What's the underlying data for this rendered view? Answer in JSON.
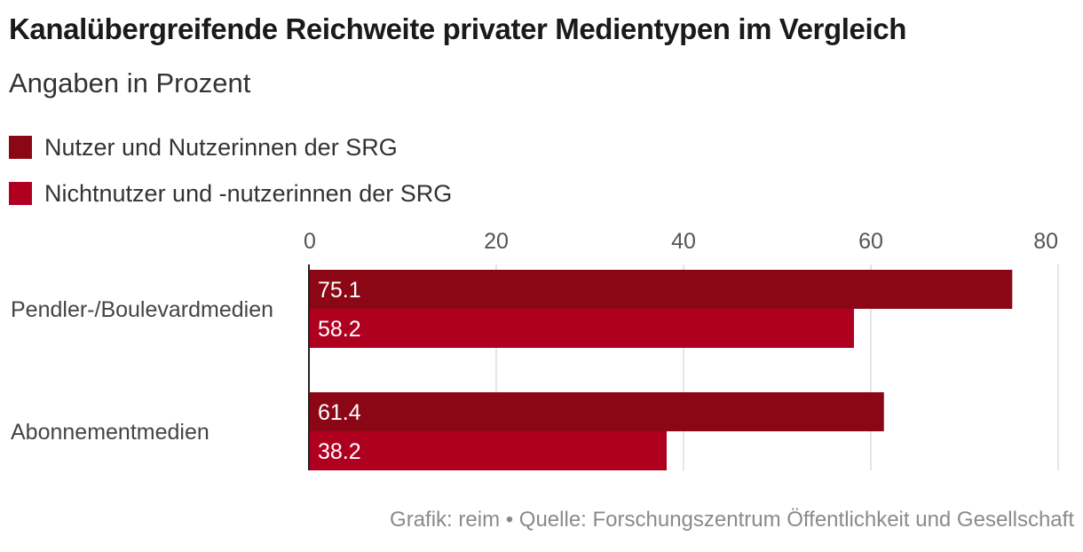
{
  "chart_data": {
    "type": "bar",
    "orientation": "horizontal",
    "title": "Kanalübergreifende Reichweite privater Medientypen im Vergleich",
    "subtitle": "Angaben in Prozent",
    "categories": [
      "Pendler-/Boulevardmedien",
      "Abonnementmedien"
    ],
    "series": [
      {
        "name": "Nutzer und Nutzerinnen der SRG",
        "color": "#8c0716",
        "values": [
          75.1,
          61.4
        ],
        "labels": [
          "75.1",
          "61.4"
        ]
      },
      {
        "name": "Nichtnutzer und -nutzerinnen der SRG",
        "color": "#b00020",
        "values": [
          58.2,
          38.2
        ],
        "labels": [
          "58.2",
          "38.2"
        ]
      }
    ],
    "xlim": [
      0,
      80
    ],
    "ticks": [
      "0",
      "20",
      "40",
      "60",
      "80"
    ],
    "tick_values": [
      0,
      20,
      40,
      60,
      80
    ],
    "grid": true,
    "legend_position": "top-left"
  },
  "footer": "Grafik: reim • Quelle: Forschungszentrum Öffentlichkeit und Gesellschaft"
}
